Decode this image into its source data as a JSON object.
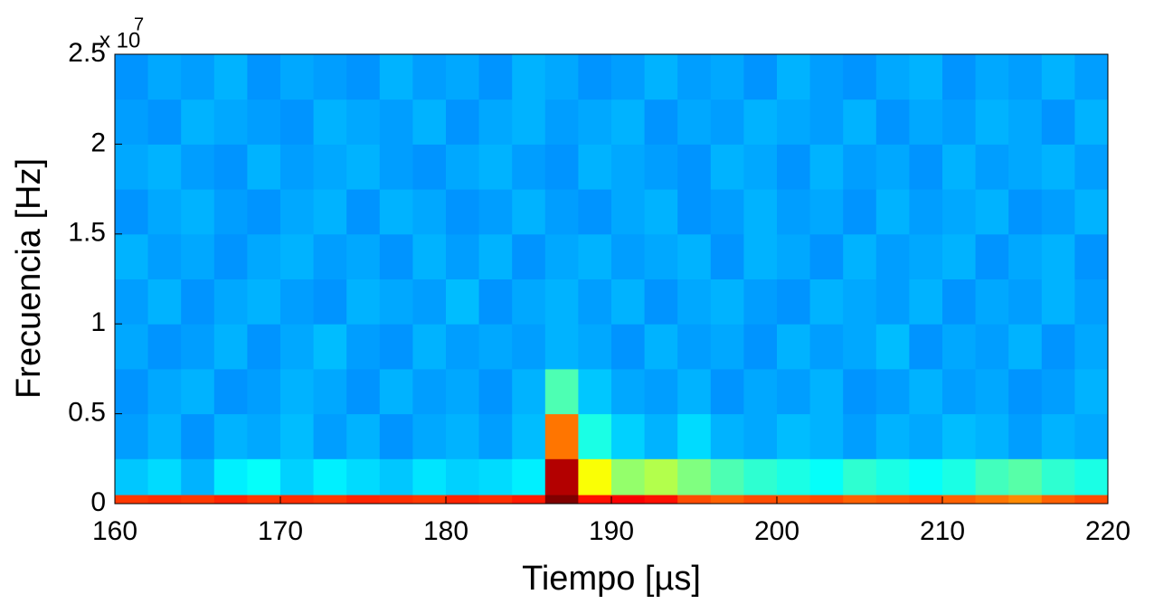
{
  "chart_data": {
    "type": "heatmap",
    "colormap": "jet",
    "xlabel": "Tiempo [µs]",
    "ylabel": "Frecuencia [Hz]",
    "y_multiplier": "x 10",
    "y_multiplier_exponent": "7",
    "xlim": [
      160,
      220
    ],
    "xticks": [
      160,
      170,
      180,
      190,
      200,
      210,
      220
    ],
    "ylim": [
      0,
      25000000
    ],
    "yticks": [
      0,
      {
        "value": 5000000,
        "label": "0.5"
      },
      {
        "value": 10000000,
        "label": "1"
      },
      {
        "value": 15000000,
        "label": "1.5"
      },
      {
        "value": 20000000,
        "label": "2"
      },
      {
        "value": 25000000,
        "label": "2.5"
      }
    ],
    "xbins": [
      160,
      162,
      164,
      166,
      168,
      170,
      172,
      174,
      176,
      178,
      180,
      182,
      184,
      186,
      188,
      190,
      192,
      194,
      196,
      198,
      200,
      202,
      204,
      206,
      208,
      210,
      212,
      214,
      216,
      218,
      220
    ],
    "ybins": [
      0,
      500000,
      2500000,
      5000000,
      7500000,
      10000000,
      12500000,
      15000000,
      17500000,
      20000000,
      22500000,
      25000000
    ],
    "z": [
      [
        0.82,
        0.83,
        0.82,
        0.84,
        0.82,
        0.83,
        0.82,
        0.84,
        0.83,
        0.82,
        0.84,
        0.83,
        0.85,
        1.0,
        0.86,
        0.88,
        0.86,
        0.8,
        0.78,
        0.8,
        0.79,
        0.8,
        0.78,
        0.79,
        0.8,
        0.78,
        0.76,
        0.74,
        0.78,
        0.8
      ],
      [
        0.32,
        0.34,
        0.3,
        0.36,
        0.38,
        0.33,
        0.36,
        0.34,
        0.32,
        0.35,
        0.33,
        0.34,
        0.36,
        0.95,
        0.62,
        0.52,
        0.55,
        0.5,
        0.45,
        0.42,
        0.4,
        0.38,
        0.42,
        0.4,
        0.38,
        0.4,
        0.44,
        0.46,
        0.42,
        0.4
      ],
      [
        0.28,
        0.3,
        0.27,
        0.3,
        0.29,
        0.31,
        0.28,
        0.3,
        0.27,
        0.29,
        0.3,
        0.28,
        0.31,
        0.76,
        0.4,
        0.33,
        0.3,
        0.34,
        0.3,
        0.29,
        0.31,
        0.3,
        0.28,
        0.3,
        0.29,
        0.31,
        0.3,
        0.28,
        0.3,
        0.29
      ],
      [
        0.27,
        0.29,
        0.3,
        0.27,
        0.28,
        0.3,
        0.29,
        0.27,
        0.3,
        0.28,
        0.29,
        0.27,
        0.3,
        0.45,
        0.32,
        0.29,
        0.28,
        0.3,
        0.27,
        0.29,
        0.28,
        0.3,
        0.27,
        0.28,
        0.3,
        0.28,
        0.29,
        0.27,
        0.28,
        0.3
      ],
      [
        0.29,
        0.27,
        0.28,
        0.3,
        0.27,
        0.29,
        0.31,
        0.28,
        0.27,
        0.3,
        0.28,
        0.29,
        0.28,
        0.3,
        0.29,
        0.27,
        0.3,
        0.28,
        0.29,
        0.27,
        0.3,
        0.28,
        0.29,
        0.31,
        0.27,
        0.29,
        0.28,
        0.3,
        0.27,
        0.29
      ],
      [
        0.28,
        0.3,
        0.27,
        0.29,
        0.3,
        0.28,
        0.27,
        0.3,
        0.29,
        0.28,
        0.31,
        0.27,
        0.29,
        0.3,
        0.28,
        0.3,
        0.27,
        0.29,
        0.3,
        0.28,
        0.27,
        0.3,
        0.29,
        0.28,
        0.3,
        0.27,
        0.29,
        0.28,
        0.3,
        0.28
      ],
      [
        0.3,
        0.28,
        0.29,
        0.27,
        0.29,
        0.3,
        0.28,
        0.29,
        0.27,
        0.3,
        0.28,
        0.3,
        0.27,
        0.29,
        0.3,
        0.28,
        0.29,
        0.3,
        0.27,
        0.3,
        0.29,
        0.27,
        0.3,
        0.28,
        0.29,
        0.3,
        0.27,
        0.29,
        0.3,
        0.27
      ],
      [
        0.27,
        0.29,
        0.3,
        0.28,
        0.27,
        0.29,
        0.3,
        0.27,
        0.3,
        0.29,
        0.27,
        0.28,
        0.3,
        0.28,
        0.27,
        0.29,
        0.3,
        0.27,
        0.28,
        0.3,
        0.28,
        0.29,
        0.27,
        0.3,
        0.28,
        0.29,
        0.3,
        0.27,
        0.28,
        0.3
      ],
      [
        0.29,
        0.3,
        0.28,
        0.27,
        0.3,
        0.28,
        0.29,
        0.3,
        0.28,
        0.27,
        0.29,
        0.3,
        0.28,
        0.27,
        0.3,
        0.29,
        0.28,
        0.27,
        0.3,
        0.29,
        0.27,
        0.3,
        0.28,
        0.29,
        0.27,
        0.3,
        0.28,
        0.29,
        0.3,
        0.28
      ],
      [
        0.28,
        0.27,
        0.3,
        0.29,
        0.28,
        0.27,
        0.3,
        0.29,
        0.28,
        0.3,
        0.27,
        0.29,
        0.3,
        0.28,
        0.29,
        0.3,
        0.27,
        0.29,
        0.28,
        0.3,
        0.29,
        0.28,
        0.3,
        0.27,
        0.29,
        0.28,
        0.3,
        0.29,
        0.27,
        0.3
      ],
      [
        0.27,
        0.29,
        0.28,
        0.3,
        0.27,
        0.29,
        0.28,
        0.27,
        0.3,
        0.28,
        0.29,
        0.27,
        0.3,
        0.29,
        0.27,
        0.28,
        0.3,
        0.28,
        0.29,
        0.27,
        0.3,
        0.28,
        0.27,
        0.29,
        0.3,
        0.27,
        0.29,
        0.28,
        0.3,
        0.28
      ]
    ]
  }
}
